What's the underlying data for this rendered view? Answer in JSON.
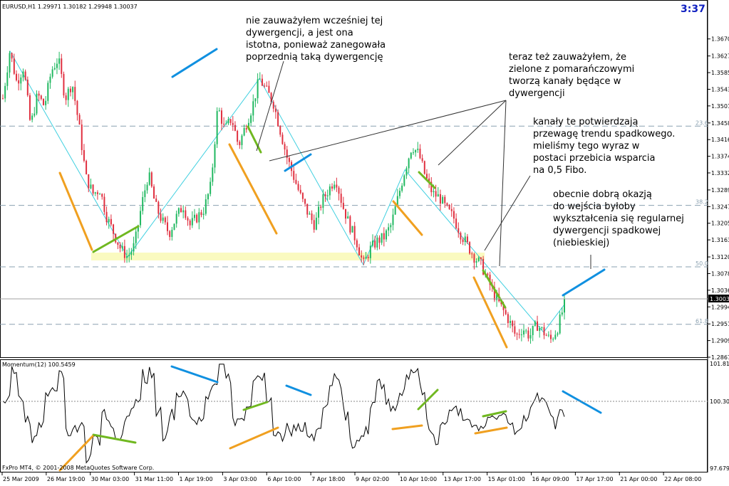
{
  "window": {
    "symbol_info": "EURUSD,H1  1.29971 1.30182 1.29948 1.30037",
    "timer": "3:37",
    "current_price": "1.30037",
    "watermark": "FxPro MT4, © 2001-2008 MetaQuotes Software Corp."
  },
  "momentum_pane": {
    "title": "Momentum(12) 100.5459",
    "scale": [
      "101.8177",
      "100.3046",
      "97.6795"
    ]
  },
  "fibo_labels": [
    "23.6",
    "38.2",
    "50.0",
    "61.8"
  ],
  "annotations": [
    {
      "id": "a1",
      "lines": [
        "nie zauważyłem wcześniej tej",
        "dywergencji, a jest ona",
        "istotna, ponieważ zanegowała",
        "poprzednią taką dywergencję"
      ]
    },
    {
      "id": "a2",
      "lines": [
        "teraz też zauważyłem, że",
        "zielone z pomarańczowymi",
        "tworzą kanały będące w",
        "dywergencji"
      ]
    },
    {
      "id": "a3",
      "lines": [
        "kanały te potwierdzają",
        "przewagę trendu spadkowego.",
        "mieliśmy tego wyraz w",
        "postaci przebicia wsparcia",
        "na 0,5 Fibo."
      ]
    },
    {
      "id": "a4",
      "lines": [
        "obecnie dobrą okazją",
        "do wejścia byłoby",
        "wykształcenia się regularnej",
        "dywergencji spadkowej",
        "(niebieskiej)"
      ]
    }
  ],
  "chart_data": {
    "type": "candlestick",
    "symbol": "EURUSD",
    "timeframe": "H1",
    "ylim": [
      1.2867,
      1.37
    ],
    "y_ticks": [
      "1.36700",
      "1.36270",
      "1.35850",
      "1.35430",
      "1.35010",
      "1.34580",
      "1.34160",
      "1.33740",
      "1.33320",
      "1.32890",
      "1.32470",
      "1.32050",
      "1.31630",
      "1.31200",
      "1.30780",
      "1.30360",
      "1.29940",
      "1.29510",
      "1.29090",
      "1.28670"
    ],
    "x_ticks": [
      "25 Mar 2009",
      "26 Mar 19:00",
      "30 Mar 03:00",
      "31 Mar 11:00",
      "1 Apr 19:00",
      "3 Apr 03:00",
      "6 Apr 10:00",
      "7 Apr 18:00",
      "9 Apr 02:00",
      "10 Apr 10:00",
      "13 Apr 17:00",
      "15 Apr 01:00",
      "16 Apr 09:00",
      "17 Apr 17:00",
      "21 Apr 00:00",
      "22 Apr 08:00"
    ],
    "price_path": [
      1.352,
      1.364,
      1.356,
      1.36,
      1.345,
      1.353,
      1.35,
      1.359,
      1.362,
      1.352,
      1.356,
      1.345,
      1.332,
      1.328,
      1.329,
      1.322,
      1.318,
      1.314,
      1.312,
      1.315,
      1.325,
      1.333,
      1.325,
      1.321,
      1.318,
      1.322,
      1.325,
      1.32,
      1.322,
      1.324,
      1.33,
      1.35,
      1.344,
      1.347,
      1.34,
      1.345,
      1.35,
      1.357,
      1.354,
      1.351,
      1.344,
      1.337,
      1.332,
      1.327,
      1.323,
      1.32,
      1.326,
      1.329,
      1.332,
      1.325,
      1.32,
      1.316,
      1.31,
      1.314,
      1.316,
      1.317,
      1.32,
      1.327,
      1.334,
      1.34,
      1.338,
      1.332,
      1.328,
      1.327,
      1.324,
      1.322,
      1.318,
      1.315,
      1.312,
      1.31,
      1.306,
      1.302,
      1.299,
      1.296,
      1.292,
      1.294,
      1.292,
      1.295,
      1.293,
      1.291,
      1.294,
      1.3
    ],
    "fibo_levels": [
      {
        "label": "23.6",
        "price": 1.345
      },
      {
        "label": "38.2",
        "price": 1.325
      },
      {
        "label": "50.0",
        "price": 1.3095
      },
      {
        "label": "61.8",
        "price": 1.295
      }
    ],
    "current_price": 1.30037,
    "momentum": {
      "name": "Momentum(12)",
      "value": 100.5459,
      "ylim": [
        97.6795,
        101.8177
      ],
      "reference": 100.3046
    }
  },
  "colors": {
    "bull": "#20b860",
    "bear": "#e03040",
    "zigzag": "#40d0e0",
    "fibo": "#8aa0b0",
    "blue": "#1090e0",
    "green": "#70b820",
    "orange": "#f0a020",
    "support_band": "#fafac0",
    "timer": "#1020c0"
  }
}
